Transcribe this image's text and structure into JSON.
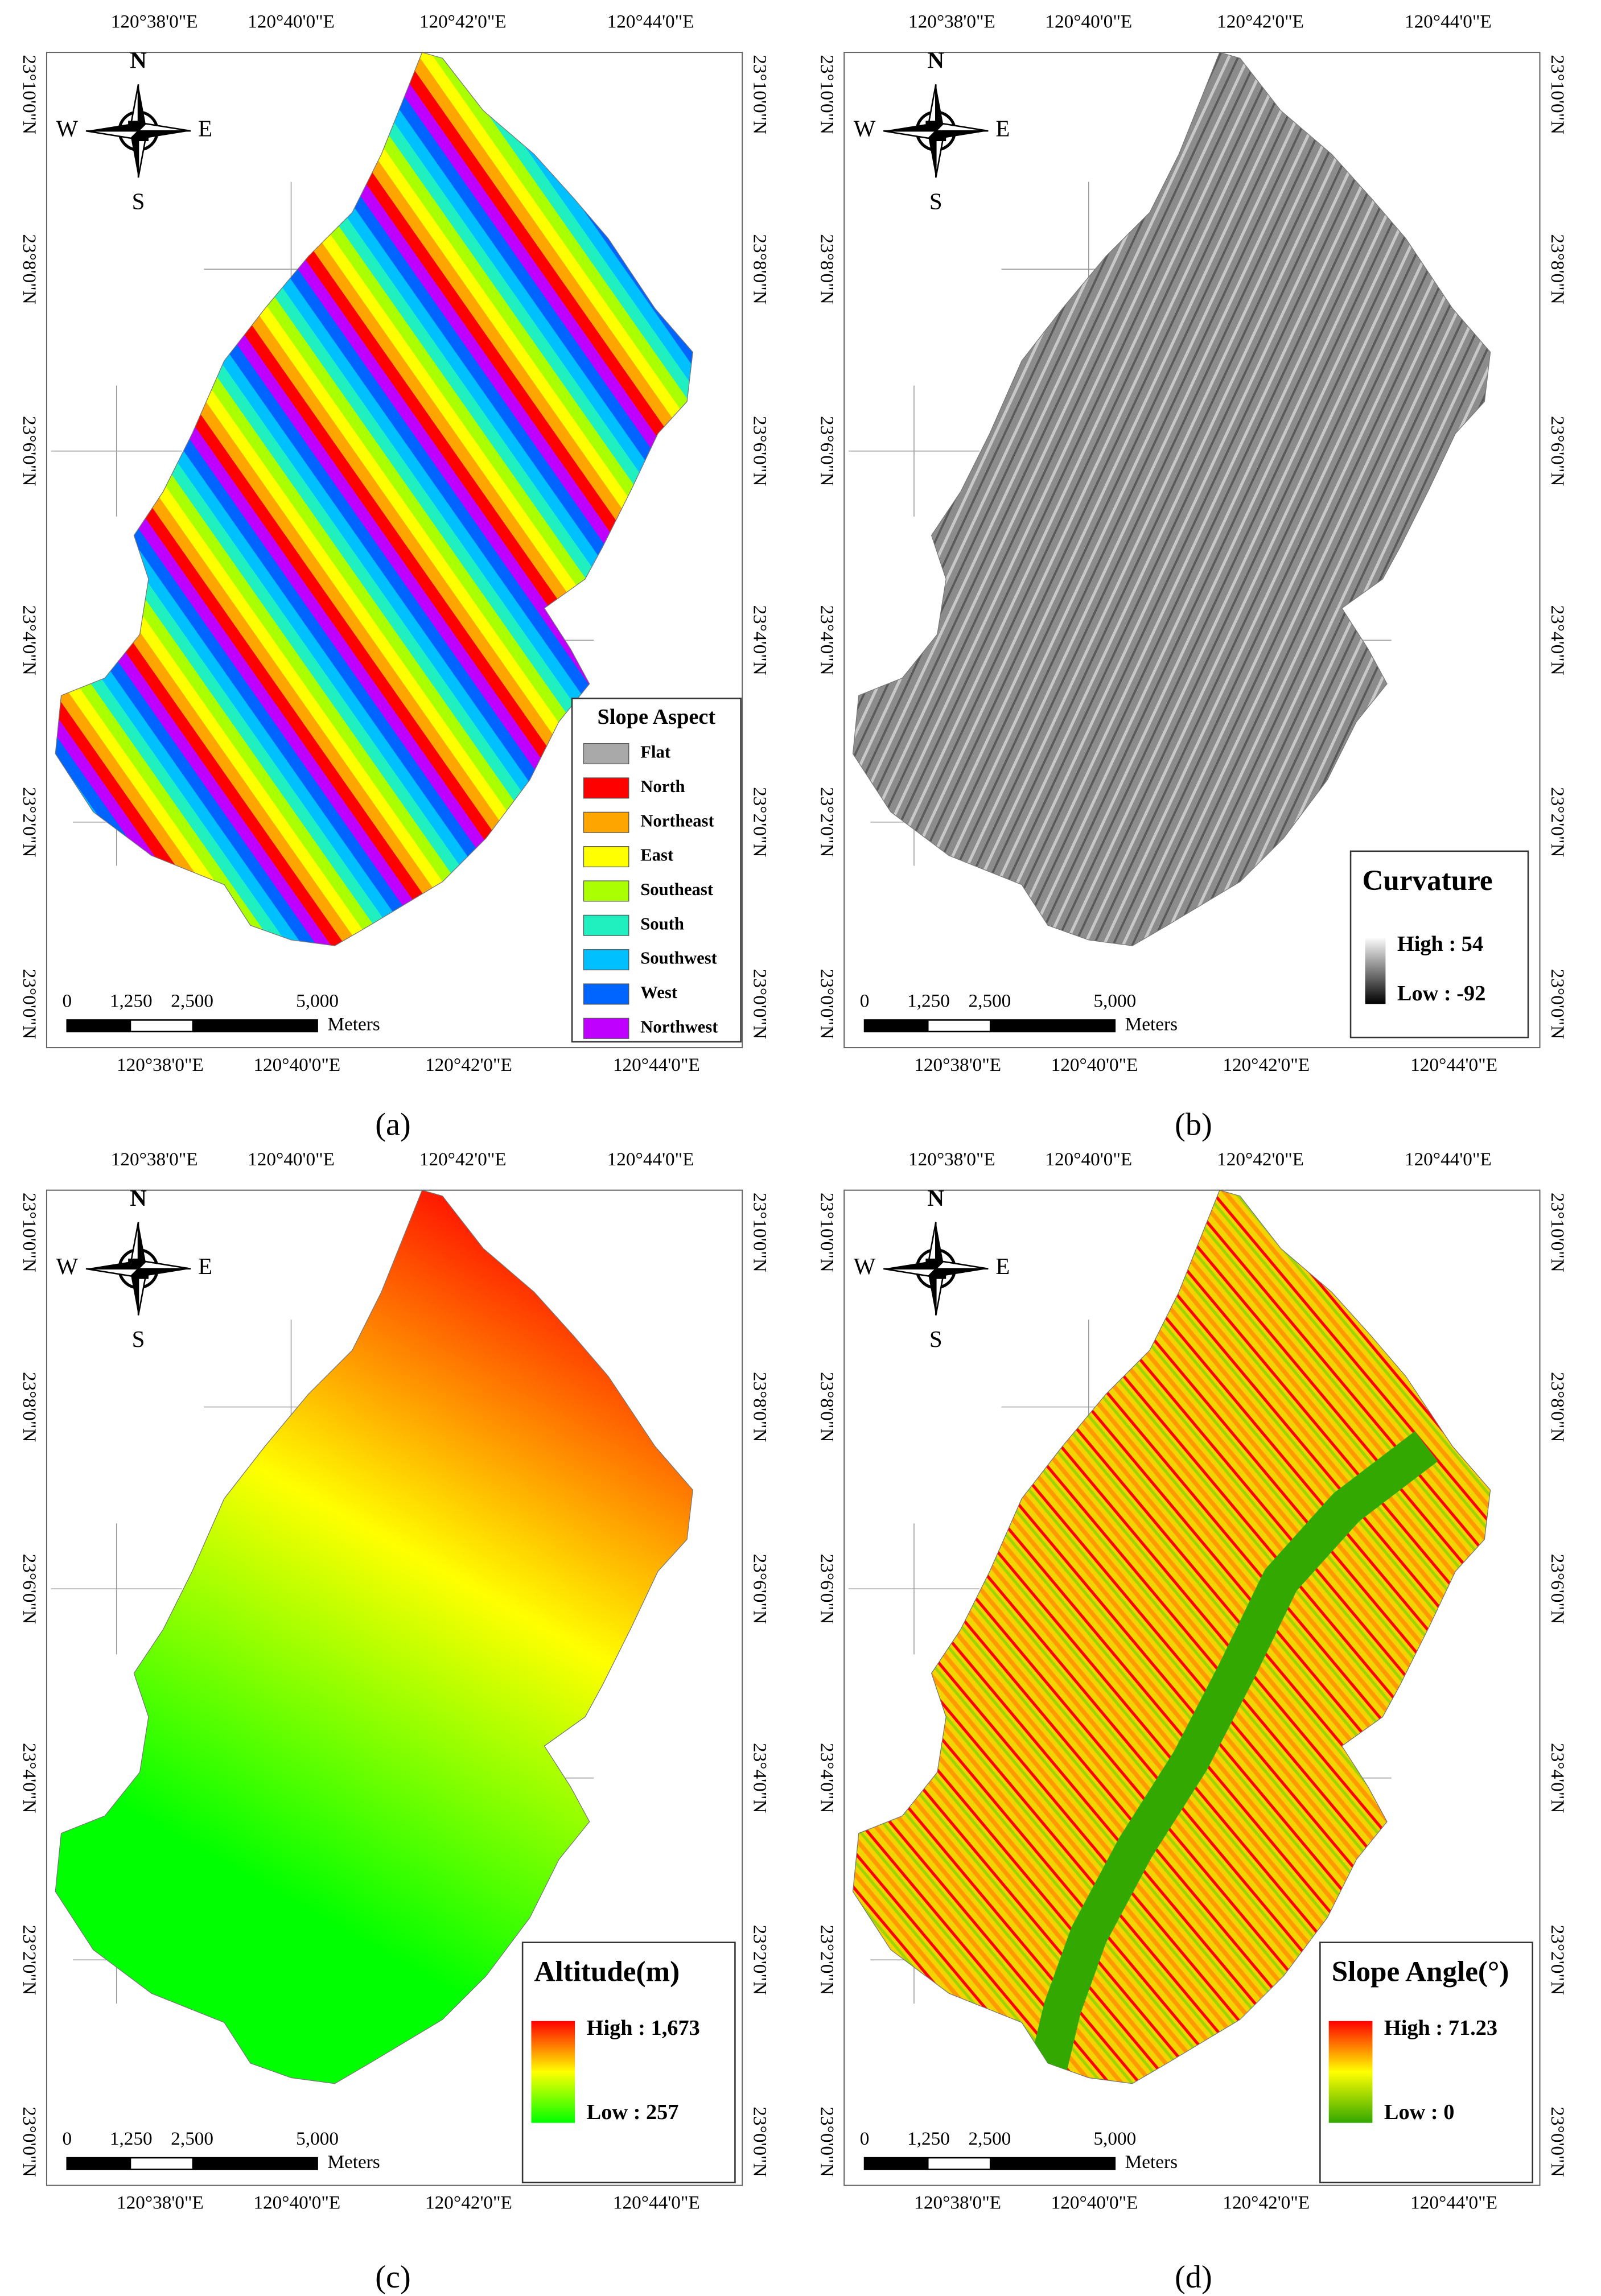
{
  "panels": [
    {
      "label": "(a)",
      "top_labels": [
        "120°38'0\"E",
        "120°40'0\"E",
        "120°42'0\"E",
        "120°44'0\"E"
      ],
      "bottom_labels": [
        "120°38'0\"E",
        "120°40'0\"E",
        "120°42'0\"E",
        "120°44'0\"E"
      ],
      "left_labels": [
        "23°10'0\"N",
        "23°8'0\"N",
        "23°6'0\"N",
        "23°4'0\"N",
        "23°2'0\"N",
        "23°0'0\"N"
      ],
      "right_labels": [
        "23°10'0\"N",
        "23°8'0\"N",
        "23°6'0\"N",
        "23°4'0\"N",
        "23°2'0\"N",
        "23°0'0\"N"
      ],
      "compass": {
        "n": "N",
        "s": "S",
        "w": "W",
        "e": "E"
      },
      "scale_bar": {
        "ticks": [
          "0",
          "1,250",
          "2,500",
          "5,000"
        ],
        "unit": "Meters"
      },
      "legend": {
        "title": "Slope Aspect",
        "items": [
          {
            "label": "Flat",
            "color": "#a9a9a9"
          },
          {
            "label": "North",
            "color": "#ff0000"
          },
          {
            "label": "Northeast",
            "color": "#ffa500"
          },
          {
            "label": "East",
            "color": "#ffff00"
          },
          {
            "label": "Southeast",
            "color": "#aaff00"
          },
          {
            "label": "South",
            "color": "#20f0c0"
          },
          {
            "label": "Southwest",
            "color": "#00c0ff"
          },
          {
            "label": "West",
            "color": "#0064ff"
          },
          {
            "label": "Northwest",
            "color": "#c000ff"
          }
        ]
      }
    },
    {
      "label": "(b)",
      "top_labels": [
        "120°38'0\"E",
        "120°40'0\"E",
        "120°42'0\"E",
        "120°44'0\"E"
      ],
      "bottom_labels": [
        "120°38'0\"E",
        "120°40'0\"E",
        "120°42'0\"E",
        "120°44'0\"E"
      ],
      "left_labels": [
        "23°10'0\"N",
        "23°8'0\"N",
        "23°6'0\"N",
        "23°4'0\"N",
        "23°2'0\"N",
        "23°0'0\"N"
      ],
      "right_labels": [
        "23°10'0\"N",
        "23°8'0\"N",
        "23°6'0\"N",
        "23°4'0\"N",
        "23°2'0\"N",
        "23°0'0\"N"
      ],
      "compass": {
        "n": "N",
        "s": "S",
        "w": "W",
        "e": "E"
      },
      "scale_bar": {
        "ticks": [
          "0",
          "1,250",
          "2,500",
          "5,000"
        ],
        "unit": "Meters"
      },
      "legend": {
        "title": "Curvature",
        "high": "High : 54",
        "low": "Low : -92",
        "colors": [
          "#ffffff",
          "#000000"
        ]
      }
    },
    {
      "label": "(c)",
      "top_labels": [
        "120°38'0\"E",
        "120°40'0\"E",
        "120°42'0\"E",
        "120°44'0\"E"
      ],
      "bottom_labels": [
        "120°38'0\"E",
        "120°40'0\"E",
        "120°42'0\"E",
        "120°44'0\"E"
      ],
      "left_labels": [
        "23°10'0\"N",
        "23°8'0\"N",
        "23°6'0\"N",
        "23°4'0\"N",
        "23°2'0\"N",
        "23°0'0\"N"
      ],
      "right_labels": [
        "23°10'0\"N",
        "23°8'0\"N",
        "23°6'0\"N",
        "23°4'0\"N",
        "23°2'0\"N",
        "23°0'0\"N"
      ],
      "compass": {
        "n": "N",
        "s": "S",
        "w": "W",
        "e": "E"
      },
      "scale_bar": {
        "ticks": [
          "0",
          "1,250",
          "2,500",
          "5,000"
        ],
        "unit": "Meters"
      },
      "legend": {
        "title": "Altitude(m)",
        "high": "High : 1,673",
        "low": "Low : 257",
        "colors": [
          "#ff0000",
          "#ffff00",
          "#00ff00"
        ]
      }
    },
    {
      "label": "(d)",
      "top_labels": [
        "120°38'0\"E",
        "120°40'0\"E",
        "120°42'0\"E",
        "120°44'0\"E"
      ],
      "bottom_labels": [
        "120°38'0\"E",
        "120°40'0\"E",
        "120°42'0\"E",
        "120°44'0\"E"
      ],
      "left_labels": [
        "23°10'0\"N",
        "23°8'0\"N",
        "23°6'0\"N",
        "23°4'0\"N",
        "23°2'0\"N",
        "23°0'0\"N"
      ],
      "right_labels": [
        "23°10'0\"N",
        "23°8'0\"N",
        "23°6'0\"N",
        "23°4'0\"N",
        "23°2'0\"N",
        "23°0'0\"N"
      ],
      "compass": {
        "n": "N",
        "s": "S",
        "w": "W",
        "e": "E"
      },
      "scale_bar": {
        "ticks": [
          "0",
          "1,250",
          "2,500",
          "5,000"
        ],
        "unit": "Meters"
      },
      "legend": {
        "title": "Slope Angle(°)",
        "high": "High : 71.23",
        "low": "Low : 0",
        "colors": [
          "#ff0000",
          "#ffff00",
          "#33a800"
        ]
      }
    }
  ]
}
